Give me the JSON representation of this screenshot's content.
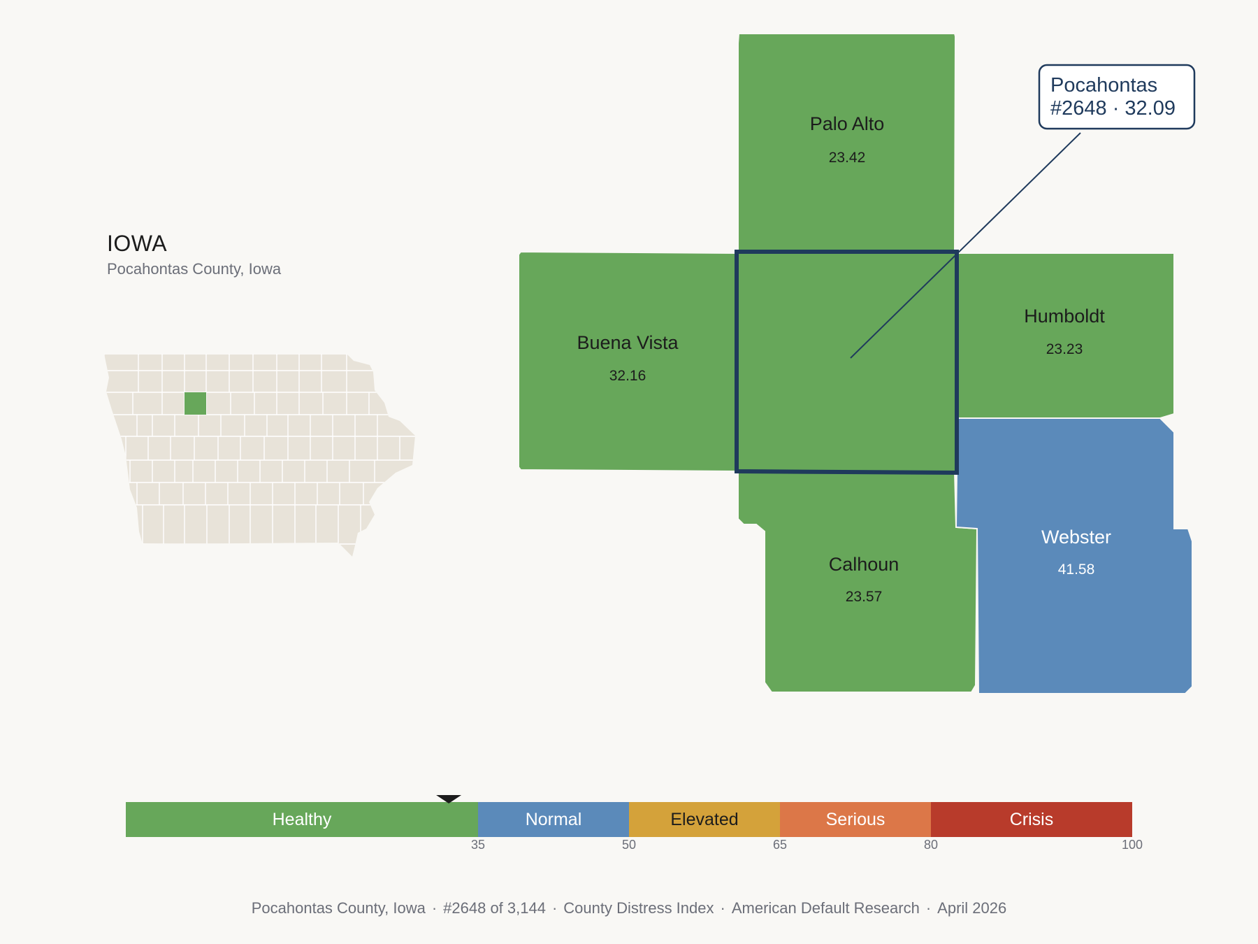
{
  "state": {
    "title": "IOWA",
    "subtitle": "Pocahontas County, Iowa"
  },
  "callout": {
    "line1": "Pocahontas",
    "line2": "#2648 · 32.09"
  },
  "counties": [
    {
      "key": "palo-alto",
      "name": "Palo Alto",
      "value": "23.42",
      "category": "Healthy"
    },
    {
      "key": "buena-vista",
      "name": "Buena Vista",
      "value": "32.16",
      "category": "Healthy"
    },
    {
      "key": "humboldt",
      "name": "Humboldt",
      "value": "23.23",
      "category": "Healthy"
    },
    {
      "key": "calhoun",
      "name": "Calhoun",
      "value": "23.57",
      "category": "Healthy"
    },
    {
      "key": "webster",
      "name": "Webster",
      "value": "41.58",
      "category": "Normal"
    },
    {
      "key": "pocahontas",
      "name": "Pocahontas",
      "value": "32.09",
      "category": "Healthy",
      "selected": true
    }
  ],
  "scale": {
    "min": 0,
    "max": 100,
    "marker_value": 32.09,
    "bands": [
      {
        "label": "Healthy",
        "from": 0,
        "to": 35,
        "color": "#67a75a",
        "text_color": "#ffffff"
      },
      {
        "label": "Normal",
        "from": 35,
        "to": 50,
        "color": "#5b8aba",
        "text_color": "#ffffff"
      },
      {
        "label": "Elevated",
        "from": 50,
        "to": 65,
        "color": "#d4a23a",
        "text_color": "#1c1c1c"
      },
      {
        "label": "Serious",
        "from": 65,
        "to": 80,
        "color": "#dc7748",
        "text_color": "#ffffff"
      },
      {
        "label": "Crisis",
        "from": 80,
        "to": 100,
        "color": "#b83b2b",
        "text_color": "#ffffff"
      }
    ],
    "ticks": [
      "35",
      "50",
      "65",
      "80",
      "100"
    ]
  },
  "footer": {
    "county": "Pocahontas County, Iowa",
    "rank": "#2648 of 3,144",
    "index": "County Distress Index",
    "source": "American Default Research",
    "date": "April 2026"
  },
  "colors": {
    "background": "#f9f8f5",
    "healthy": "#67a75a",
    "normal": "#5b8aba",
    "inset_fill": "#e8e3d9",
    "highlight_border": "#1f3a5c",
    "callout_text": "#1f3a5c"
  }
}
